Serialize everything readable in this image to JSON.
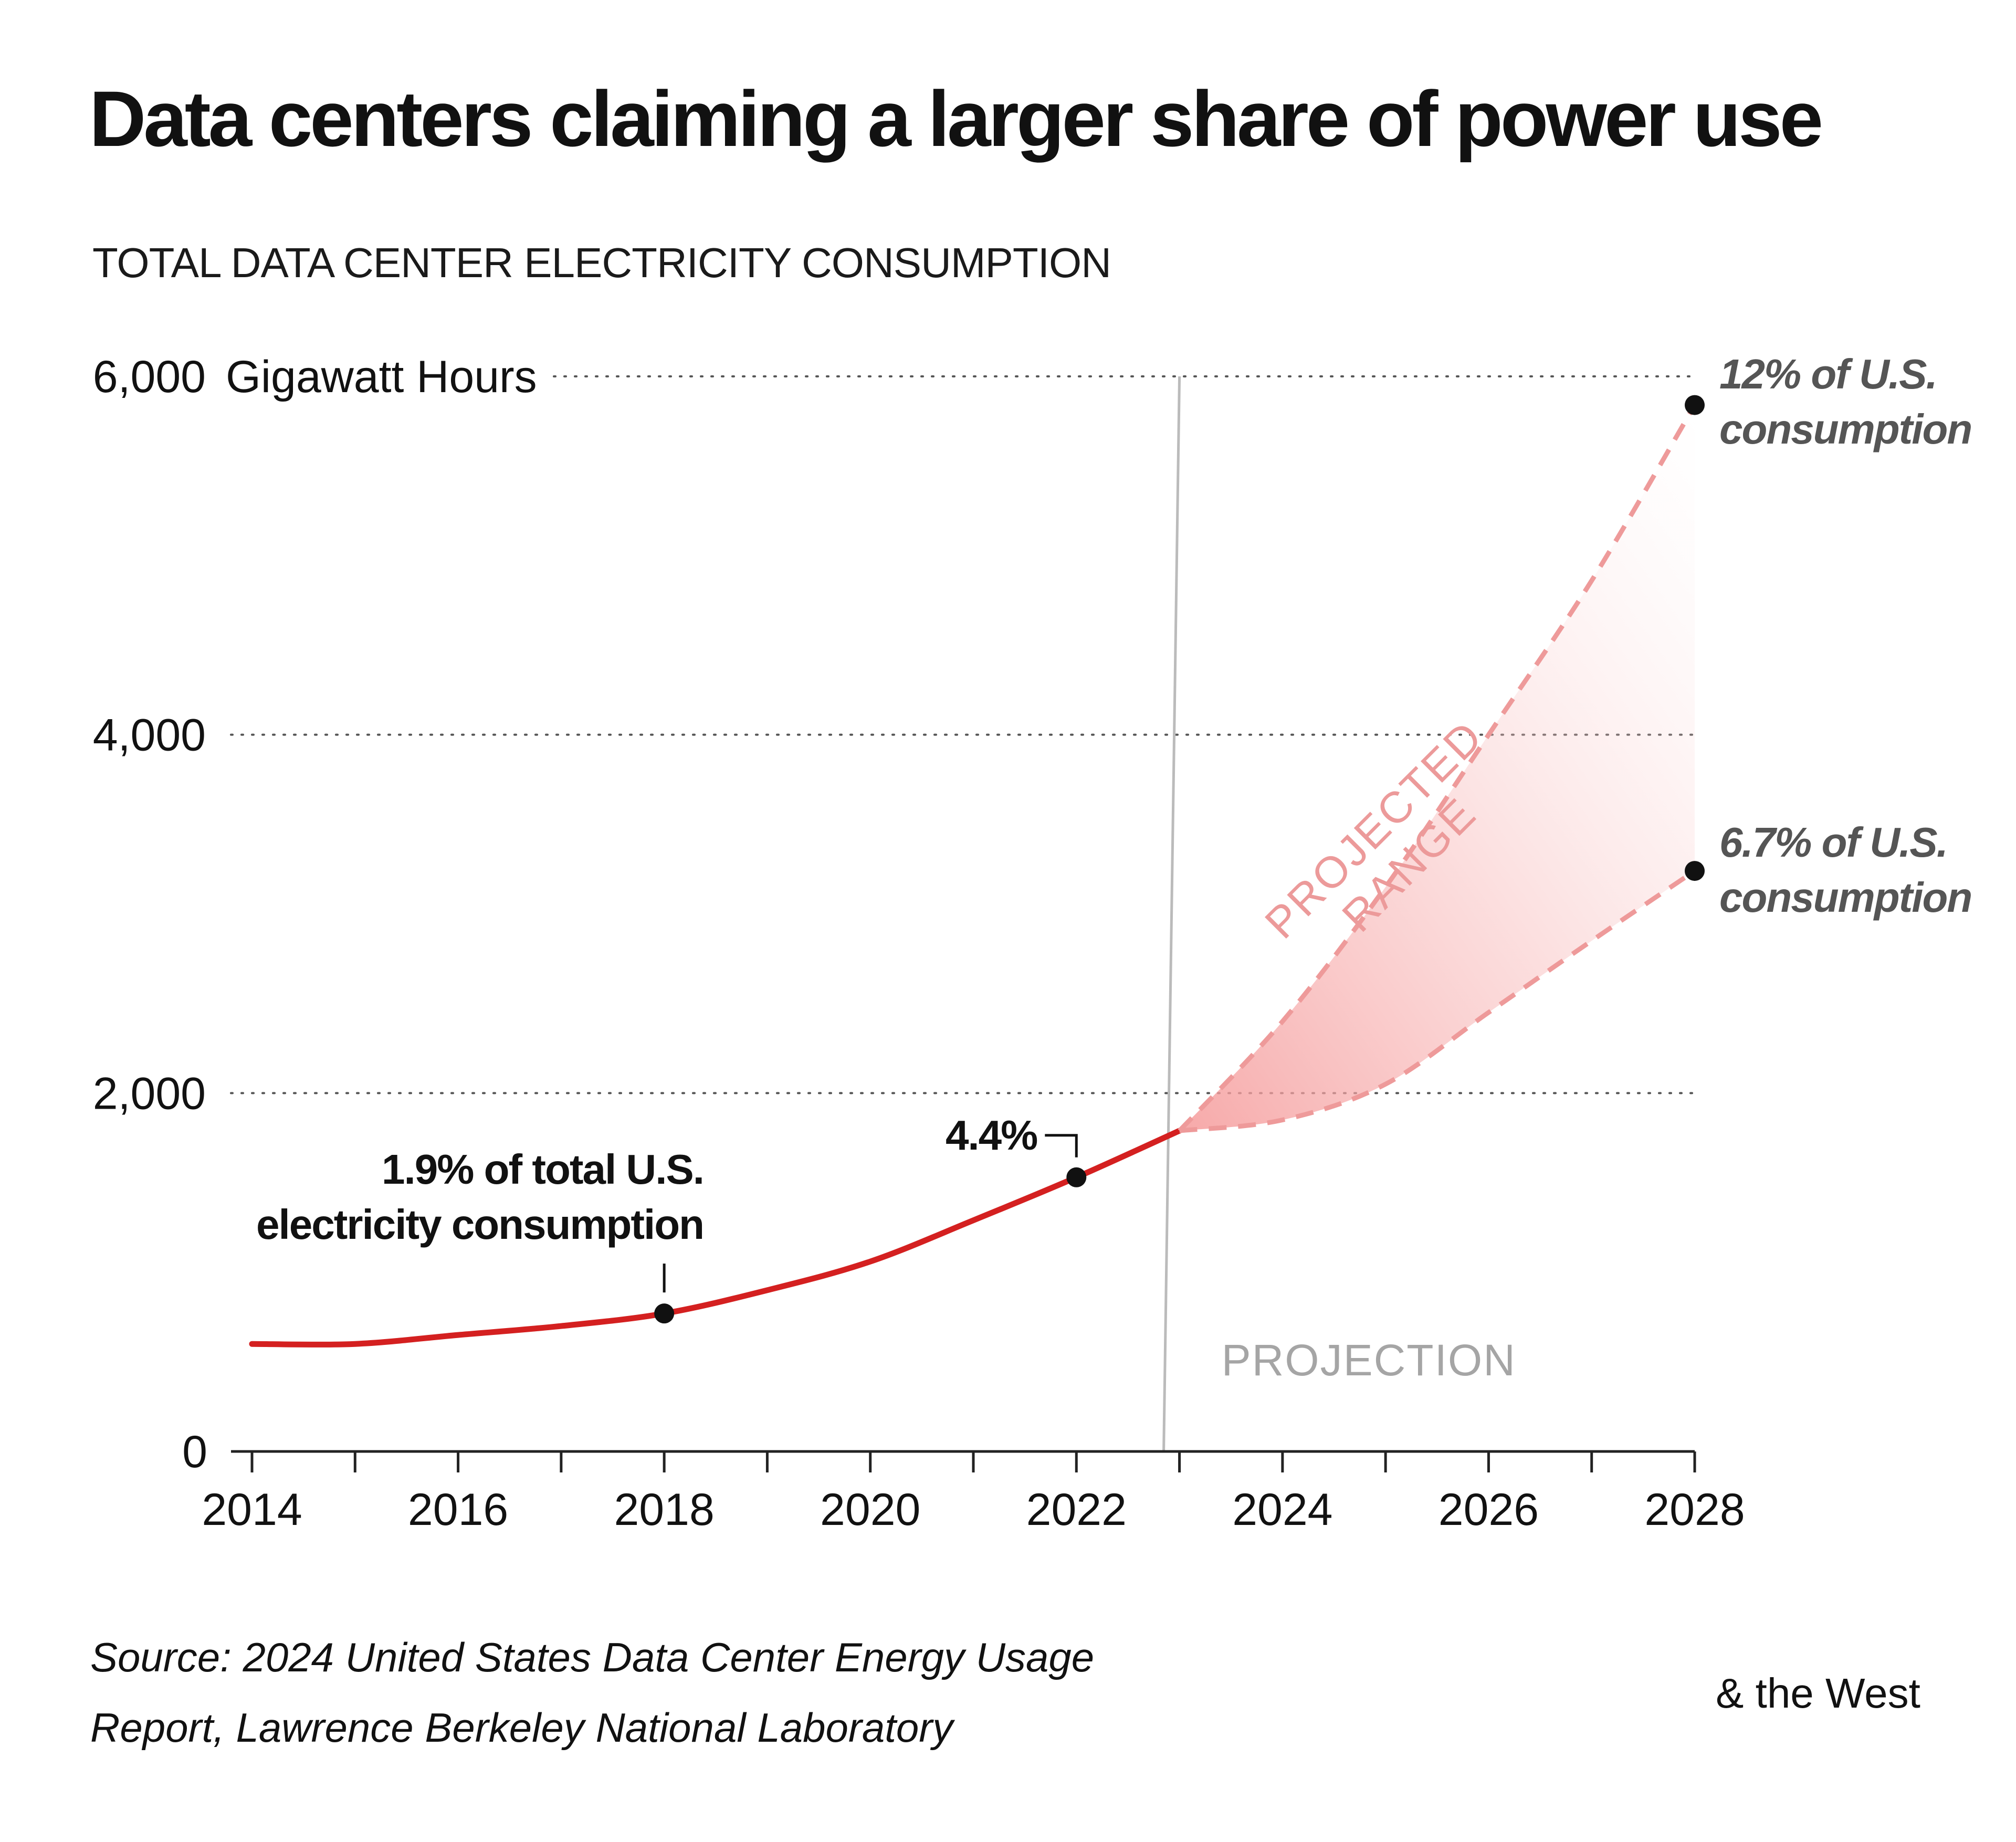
{
  "title": "Data centers claiming a larger share of power use",
  "subtitle": "TOTAL DATA CENTER ELECTRICITY CONSUMPTION",
  "source_line1": "Source: 2024 United States Data Center Energy Usage",
  "source_line2": "Report, Lawrence Berkeley National Laboratory",
  "brand": "& the West",
  "colors": {
    "historical_line": "#d42020",
    "projection_dash": "#ee9a9a",
    "range_fill": "#f7a4a4",
    "gridline": "#555555",
    "projection_divider": "#bbbbbb"
  },
  "chart_data": {
    "type": "line",
    "title": "Data centers claiming a larger share of power use",
    "subtitle": "TOTAL DATA CENTER ELECTRICITY CONSUMPTION",
    "ylabel": "Gigawatt Hours",
    "xlabel": "",
    "xlim": [
      2014,
      2028
    ],
    "ylim": [
      0,
      6000
    ],
    "yticks": [
      {
        "value": 0,
        "label": "0"
      },
      {
        "value": 2000,
        "label": "2,000"
      },
      {
        "value": 4000,
        "label": "4,000"
      },
      {
        "value": 6000,
        "label": "6,000"
      }
    ],
    "xticks": [
      2014,
      2016,
      2018,
      2020,
      2022,
      2024,
      2026,
      2028
    ],
    "xtick_labels": [
      "2014",
      "2016",
      "2018",
      "2020",
      "2022",
      "2024",
      "2026",
      "2028"
    ],
    "grid": "dotted horizontal at 2,000 / 4,000 / 6,000",
    "historical": {
      "x": [
        2014,
        2015,
        2016,
        2017,
        2018,
        2019,
        2020,
        2021,
        2022,
        2023
      ],
      "y": [
        600,
        600,
        650,
        700,
        770,
        900,
        1060,
        1290,
        1530,
        1790
      ]
    },
    "projection_high": {
      "x": [
        2023,
        2024,
        2025,
        2026,
        2027,
        2028
      ],
      "y": [
        1790,
        2400,
        3150,
        4000,
        4860,
        5840
      ]
    },
    "projection_low": {
      "x": [
        2023,
        2024,
        2025,
        2026,
        2027,
        2028
      ],
      "y": [
        1790,
        1850,
        2050,
        2450,
        2850,
        3240
      ]
    },
    "projection_start": 2023,
    "projection_label": "PROJECTION",
    "range_label_line1": "PROJECTED",
    "range_label_line2": "RANGE",
    "annotations": {
      "a2018_line1": "1.9% of total U.S.",
      "a2018_line2": "electricity consumption",
      "a2018_point": {
        "x": 2018,
        "y": 770
      },
      "a2022": "4.4%",
      "a2022_point": {
        "x": 2022,
        "y": 1530
      },
      "high_line1": "12% of U.S.",
      "high_line2": "consumption",
      "high_point": {
        "x": 2028,
        "y": 5840
      },
      "low_line1": "6.7% of U.S.",
      "low_line2": "consumption",
      "low_point": {
        "x": 2028,
        "y": 3240
      }
    }
  }
}
